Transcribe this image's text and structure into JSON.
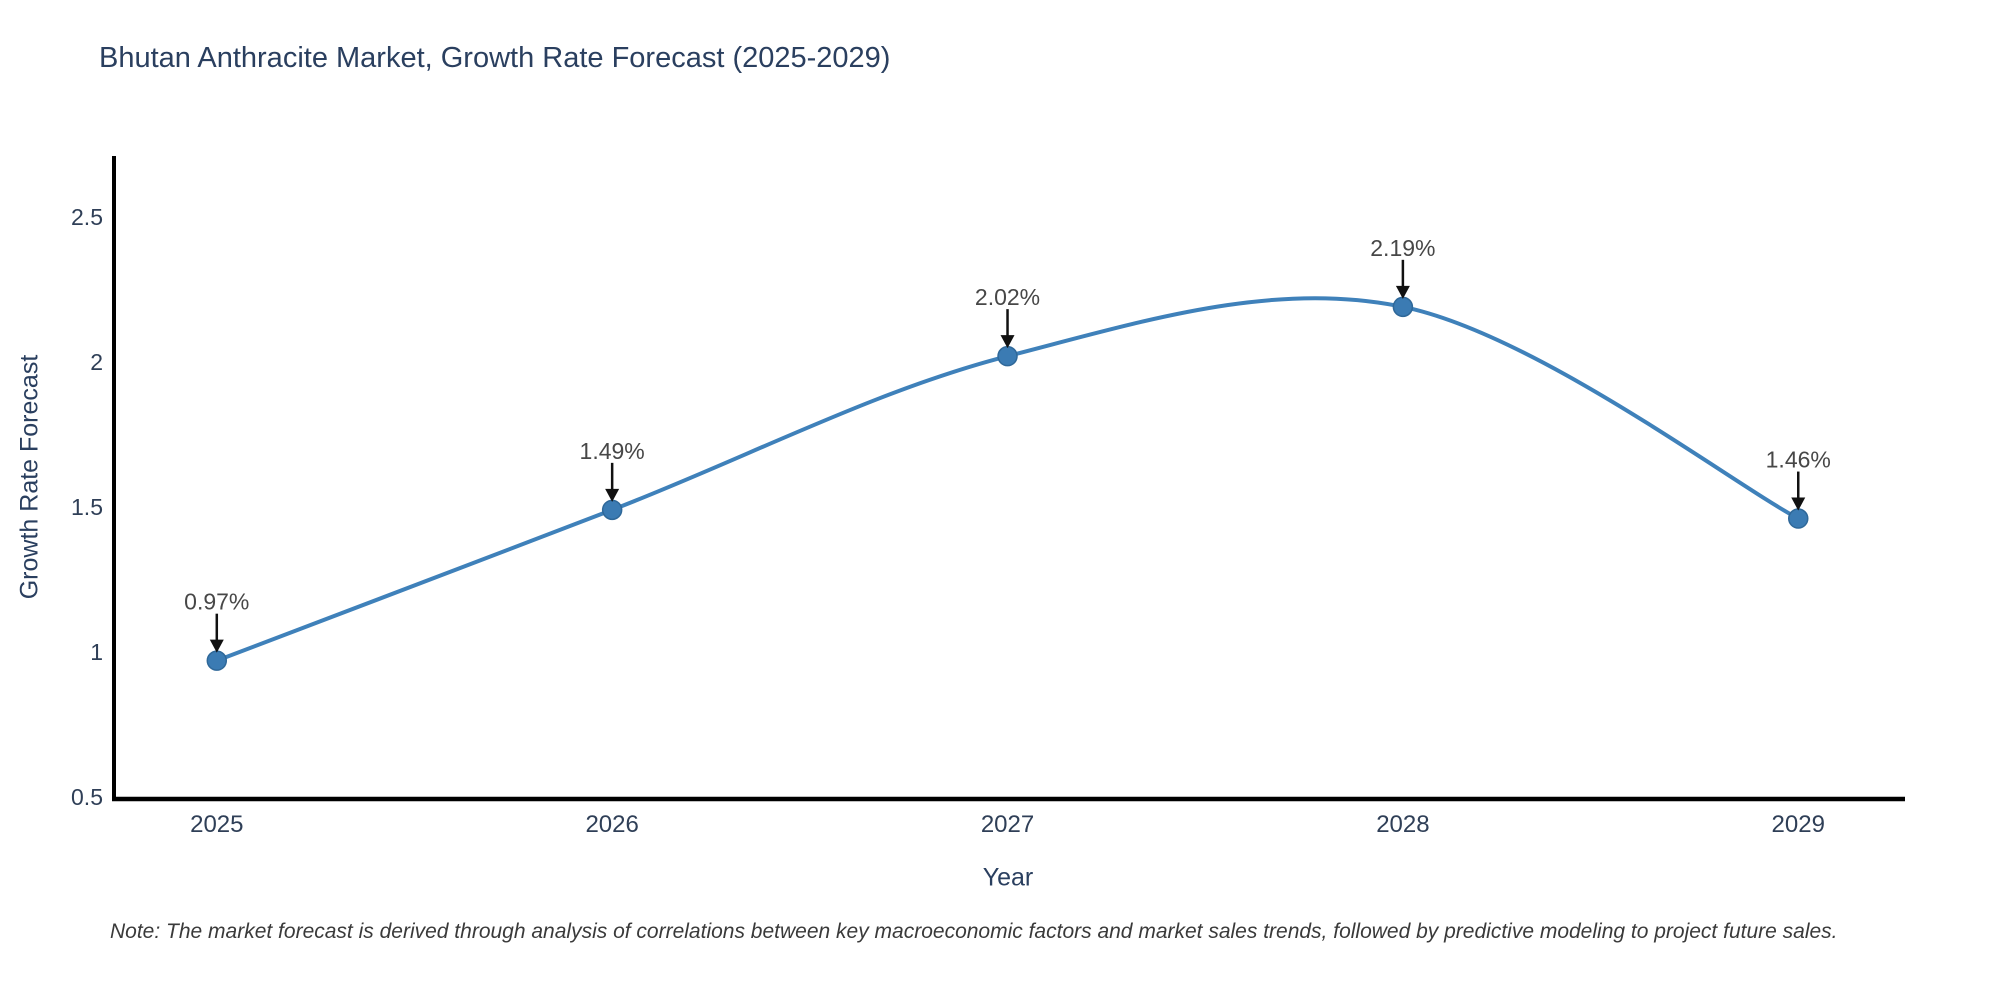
{
  "chart_data": {
    "type": "line",
    "title": "Bhutan Anthracite Market, Growth Rate Forecast (2025-2029)",
    "xlabel": "Year",
    "ylabel": "Growth Rate Forecast",
    "x": [
      2025,
      2026,
      2027,
      2028,
      2029
    ],
    "series": [
      {
        "name": "Growth Rate Forecast",
        "values": [
          0.97,
          1.49,
          2.02,
          2.19,
          1.46
        ],
        "point_labels": [
          "0.97%",
          "1.49%",
          "2.02%",
          "2.19%",
          "1.46%"
        ]
      }
    ],
    "line_shape": "spline",
    "markers": true,
    "grid": false,
    "legend": "none",
    "xticks": [
      "2025",
      "2026",
      "2027",
      "2028",
      "2029"
    ],
    "yticks": [
      "0.5",
      "1",
      "1.5",
      "2",
      "2.5"
    ],
    "ytick_values": [
      0.5,
      1,
      1.5,
      2,
      2.5
    ],
    "xlim": [
      2024.74,
      2029.27
    ],
    "ylim": [
      0.5,
      2.71
    ],
    "note": "Note: The market forecast is derived through analysis of correlations between key macroeconomic factors and market sales trends, followed by predictive modeling to project future sales.",
    "colors": {
      "line": "#3F81BA",
      "marker": "#3B7BB3",
      "marker_edge": "#2F6899",
      "axis_line": "#000000",
      "title_text": "#2A3F5F",
      "tick_text": "#2F3F57",
      "annotation_text": "#474747",
      "arrow": "#111111",
      "note_text": "#3A3A3A"
    }
  }
}
